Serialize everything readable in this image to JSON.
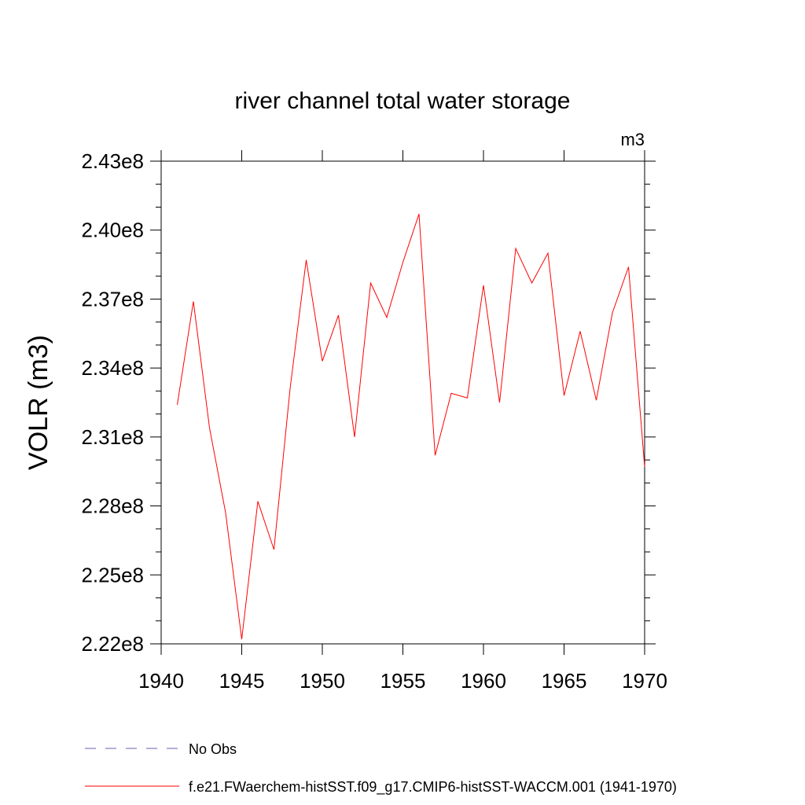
{
  "chart_data": {
    "type": "line",
    "title": "river channel total water storage",
    "units_label": "m3",
    "ylabel": "VOLR  (m3)",
    "xlabel": "",
    "xlim": [
      1940,
      1970
    ],
    "ylim": [
      222000000.0,
      243000000.0
    ],
    "x_ticks": [
      1940,
      1945,
      1950,
      1955,
      1960,
      1965,
      1970
    ],
    "x_tick_labels": [
      "1940",
      "1945",
      "1950",
      "1955",
      "1960",
      "1965",
      "1970"
    ],
    "y_ticks": [
      222000000.0,
      225000000.0,
      228000000.0,
      231000000.0,
      234000000.0,
      237000000.0,
      240000000.0,
      243000000.0
    ],
    "y_tick_labels": [
      "2.22e8",
      "2.25e8",
      "2.28e8",
      "2.31e8",
      "2.34e8",
      "2.37e8",
      "2.40e8",
      "2.43e8"
    ],
    "grid": false,
    "legend_position": "bottom",
    "series": [
      {
        "name": "f.e21.FWaerchem-histSST.f09_g17.CMIP6-histSST-WACCM.001 (1941-1970)",
        "color": "#ff0000",
        "style": "solid",
        "x": [
          1941,
          1942,
          1943,
          1944,
          1945,
          1946,
          1947,
          1948,
          1949,
          1950,
          1951,
          1952,
          1953,
          1954,
          1955,
          1956,
          1957,
          1958,
          1959,
          1960,
          1961,
          1962,
          1963,
          1964,
          1965,
          1966,
          1967,
          1968,
          1969,
          1970
        ],
        "y": [
          232400000.0,
          236900000.0,
          231400000.0,
          227700000.0,
          222200000.0,
          228200000.0,
          226100000.0,
          233100000.0,
          238700000.0,
          234300000.0,
          236300000.0,
          231000000.0,
          237700000.0,
          236200000.0,
          238600000.0,
          240700000.0,
          230200000.0,
          232900000.0,
          232700000.0,
          237600000.0,
          232500000.0,
          239200000.0,
          237700000.0,
          239000000.0,
          232800000.0,
          235600000.0,
          232600000.0,
          236400000.0,
          238400000.0,
          229700000.0
        ]
      }
    ],
    "legend_entries": [
      {
        "name": "No Obs",
        "color": "#6b5fb0",
        "style": "dashed"
      },
      {
        "name": "f.e21.FWaerchem-histSST.f09_g17.CMIP6-histSST-WACCM.001 (1941-1970)",
        "color": "#ff0000",
        "style": "solid"
      }
    ]
  }
}
